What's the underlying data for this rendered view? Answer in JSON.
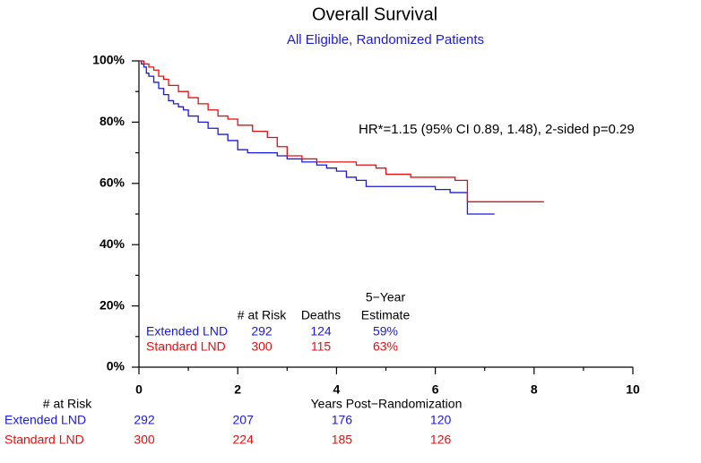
{
  "chart_data": {
    "type": "line",
    "step": true,
    "title": "Overall Survival",
    "subtitle": "All Eligible, Randomized Patients",
    "annotation": "HR*=1.15 (95% CI 0.89, 1.48), 2-sided p=0.29",
    "xlabel": "Years Post−Randomization",
    "xlim": [
      0,
      10
    ],
    "xticks": [
      0,
      2,
      4,
      6,
      8,
      10
    ],
    "xminor_ticks": [
      1,
      3,
      5,
      7,
      9
    ],
    "ylim": [
      0,
      100
    ],
    "yticks": [
      {
        "value": 0,
        "label": "0%"
      },
      {
        "value": 20,
        "label": "20%"
      },
      {
        "value": 40,
        "label": "40%"
      },
      {
        "value": 60,
        "label": "60%"
      },
      {
        "value": 80,
        "label": "80%"
      },
      {
        "value": 100,
        "label": "100%"
      }
    ],
    "yminor_ticks": [
      10,
      30,
      50,
      70,
      90
    ],
    "series": [
      {
        "name": "Extended LND",
        "color": "#1a1adc",
        "x": [
          0,
          0.05,
          0.1,
          0.15,
          0.2,
          0.3,
          0.4,
          0.5,
          0.6,
          0.7,
          0.8,
          0.9,
          1.0,
          1.2,
          1.4,
          1.6,
          1.8,
          2.0,
          2.2,
          2.5,
          2.8,
          3.0,
          3.3,
          3.6,
          3.8,
          4.0,
          4.2,
          4.4,
          4.6,
          5.0,
          5.5,
          6.0,
          6.3,
          6.65,
          7.2
        ],
        "values": [
          100,
          99,
          98,
          96,
          95,
          93,
          91,
          89,
          87,
          86,
          85,
          84,
          82,
          80,
          78,
          76,
          74,
          71,
          70,
          70,
          69,
          68,
          67,
          66,
          65,
          64,
          62,
          61,
          59,
          59,
          59,
          58,
          57,
          50,
          50
        ]
      },
      {
        "name": "Standard LND",
        "color": "#e01010",
        "x": [
          0,
          0.1,
          0.2,
          0.3,
          0.4,
          0.5,
          0.6,
          0.8,
          1.0,
          1.2,
          1.4,
          1.6,
          1.8,
          2.0,
          2.3,
          2.6,
          2.8,
          3.0,
          3.3,
          3.6,
          4.0,
          4.4,
          4.8,
          5.0,
          5.5,
          6.0,
          6.4,
          6.65,
          7.0,
          8.2
        ],
        "values": [
          100,
          99,
          98,
          97,
          95,
          94,
          92,
          90,
          88,
          86,
          84,
          82,
          81,
          79,
          77,
          75,
          72,
          69,
          68,
          67,
          67,
          66,
          65,
          63,
          62,
          62,
          61,
          54,
          54,
          54
        ]
      }
    ],
    "summary_table": {
      "headers": [
        "# at Risk",
        "Deaths",
        "5−Year",
        "Estimate"
      ],
      "rows": [
        [
          "292",
          "124",
          "59%"
        ],
        [
          "300",
          "115",
          "63%"
        ]
      ]
    },
    "risk_table": {
      "title": "# at Risk",
      "x": [
        0,
        2,
        4,
        6
      ],
      "rows": [
        [
          292,
          207,
          176,
          120
        ],
        [
          300,
          224,
          185,
          126
        ]
      ]
    }
  }
}
